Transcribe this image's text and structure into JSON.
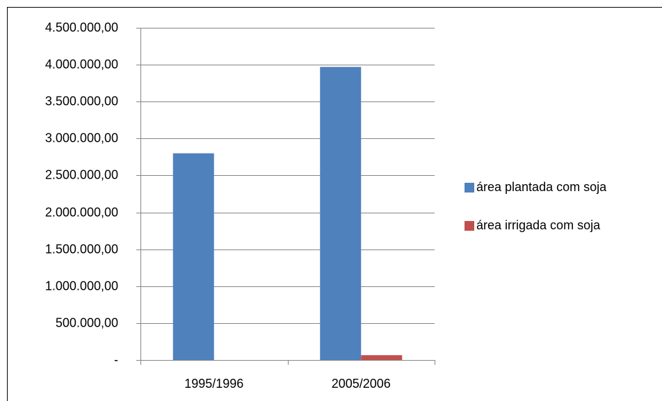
{
  "chart_data": {
    "type": "bar",
    "categories": [
      "1995/1996",
      "2005/2006"
    ],
    "series": [
      {
        "name": "área plantada com soja",
        "color": "#4f81bd",
        "values": [
          2800000,
          3970000
        ]
      },
      {
        "name": "área irrigada com soja",
        "color": "#c0504d",
        "values": [
          0,
          65000
        ]
      }
    ],
    "ylim": [
      0,
      4500000
    ],
    "yticks": [
      {
        "value": 0,
        "label": "-"
      },
      {
        "value": 500000,
        "label": "500.000,00"
      },
      {
        "value": 1000000,
        "label": "1.000.000,00"
      },
      {
        "value": 1500000,
        "label": "1.500.000,00"
      },
      {
        "value": 2000000,
        "label": "2.000.000,00"
      },
      {
        "value": 2500000,
        "label": "2.500.000,00"
      },
      {
        "value": 3000000,
        "label": "3.000.000,00"
      },
      {
        "value": 3500000,
        "label": "3.500.000,00"
      },
      {
        "value": 4000000,
        "label": "4.000.000,00"
      },
      {
        "value": 4500000,
        "label": "4.500.000,00"
      }
    ],
    "grid": true,
    "legend": "right"
  }
}
